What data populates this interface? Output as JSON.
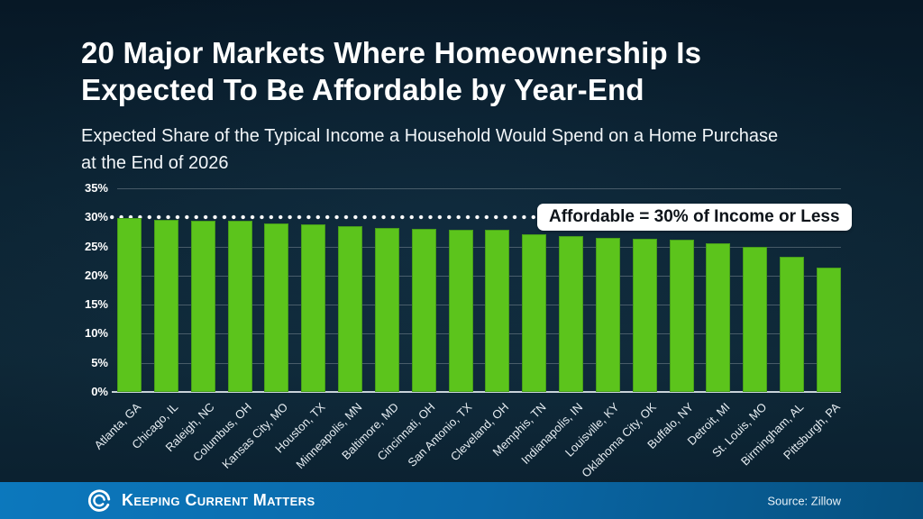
{
  "slide": {
    "title_lines": [
      "20 Major Markets Where Homeownership Is",
      "Expected To Be Affordable by Year-End"
    ],
    "subtitle_lines": [
      "Expected Share of the Typical Income a Household Would Spend on a Home Purchase",
      "at the End of 2026"
    ],
    "footer": {
      "brand": "Keeping Current Matters",
      "source": "Source: Zillow"
    }
  },
  "colors": {
    "background": "#0b2231",
    "bar_green": "#5cc41c",
    "footer_blue_left": "#0c78bd",
    "footer_blue_right": "#06507f",
    "callout_bg": "#ffffff",
    "callout_text": "#0d1319",
    "gridline": "rgba(255,255,255,0.24)"
  },
  "chart_data": {
    "type": "bar",
    "title": "Expected Share of the Typical Income a Household Would Spend on a Home Purchase at the End of 2026",
    "categories": [
      "Atlanta, GA",
      "Chicago, IL",
      "Raleigh, NC",
      "Columbus, OH",
      "Kansas City, MO",
      "Houston, TX",
      "Minneapolis, MN",
      "Baltimore, MD",
      "Cincinnati, OH",
      "San Antonio, TX",
      "Cleveland, OH",
      "Memphis, TN",
      "Indianapolis, IN",
      "Louisville, KY",
      "Oklahoma City, OK",
      "Buffalo, NY",
      "Detroit, MI",
      "St. Louis, MO",
      "Birmingham, AL",
      "Pittsburgh, PA"
    ],
    "values": [
      29.9,
      29.6,
      29.5,
      29.4,
      28.9,
      28.8,
      28.5,
      28.2,
      28.0,
      27.9,
      27.8,
      27.1,
      26.8,
      26.5,
      26.4,
      26.2,
      25.6,
      25.0,
      23.3,
      21.3
    ],
    "xlabel": "",
    "ylabel": "",
    "ylim": [
      0,
      35
    ],
    "ytick_step": 5,
    "ytick_suffix": "%",
    "grid": true,
    "legend": false,
    "bar_color": "#5cc41c",
    "reference_line": {
      "value": 30,
      "label": "Affordable = 30% of Income or Less",
      "style": "dotted-white"
    }
  }
}
